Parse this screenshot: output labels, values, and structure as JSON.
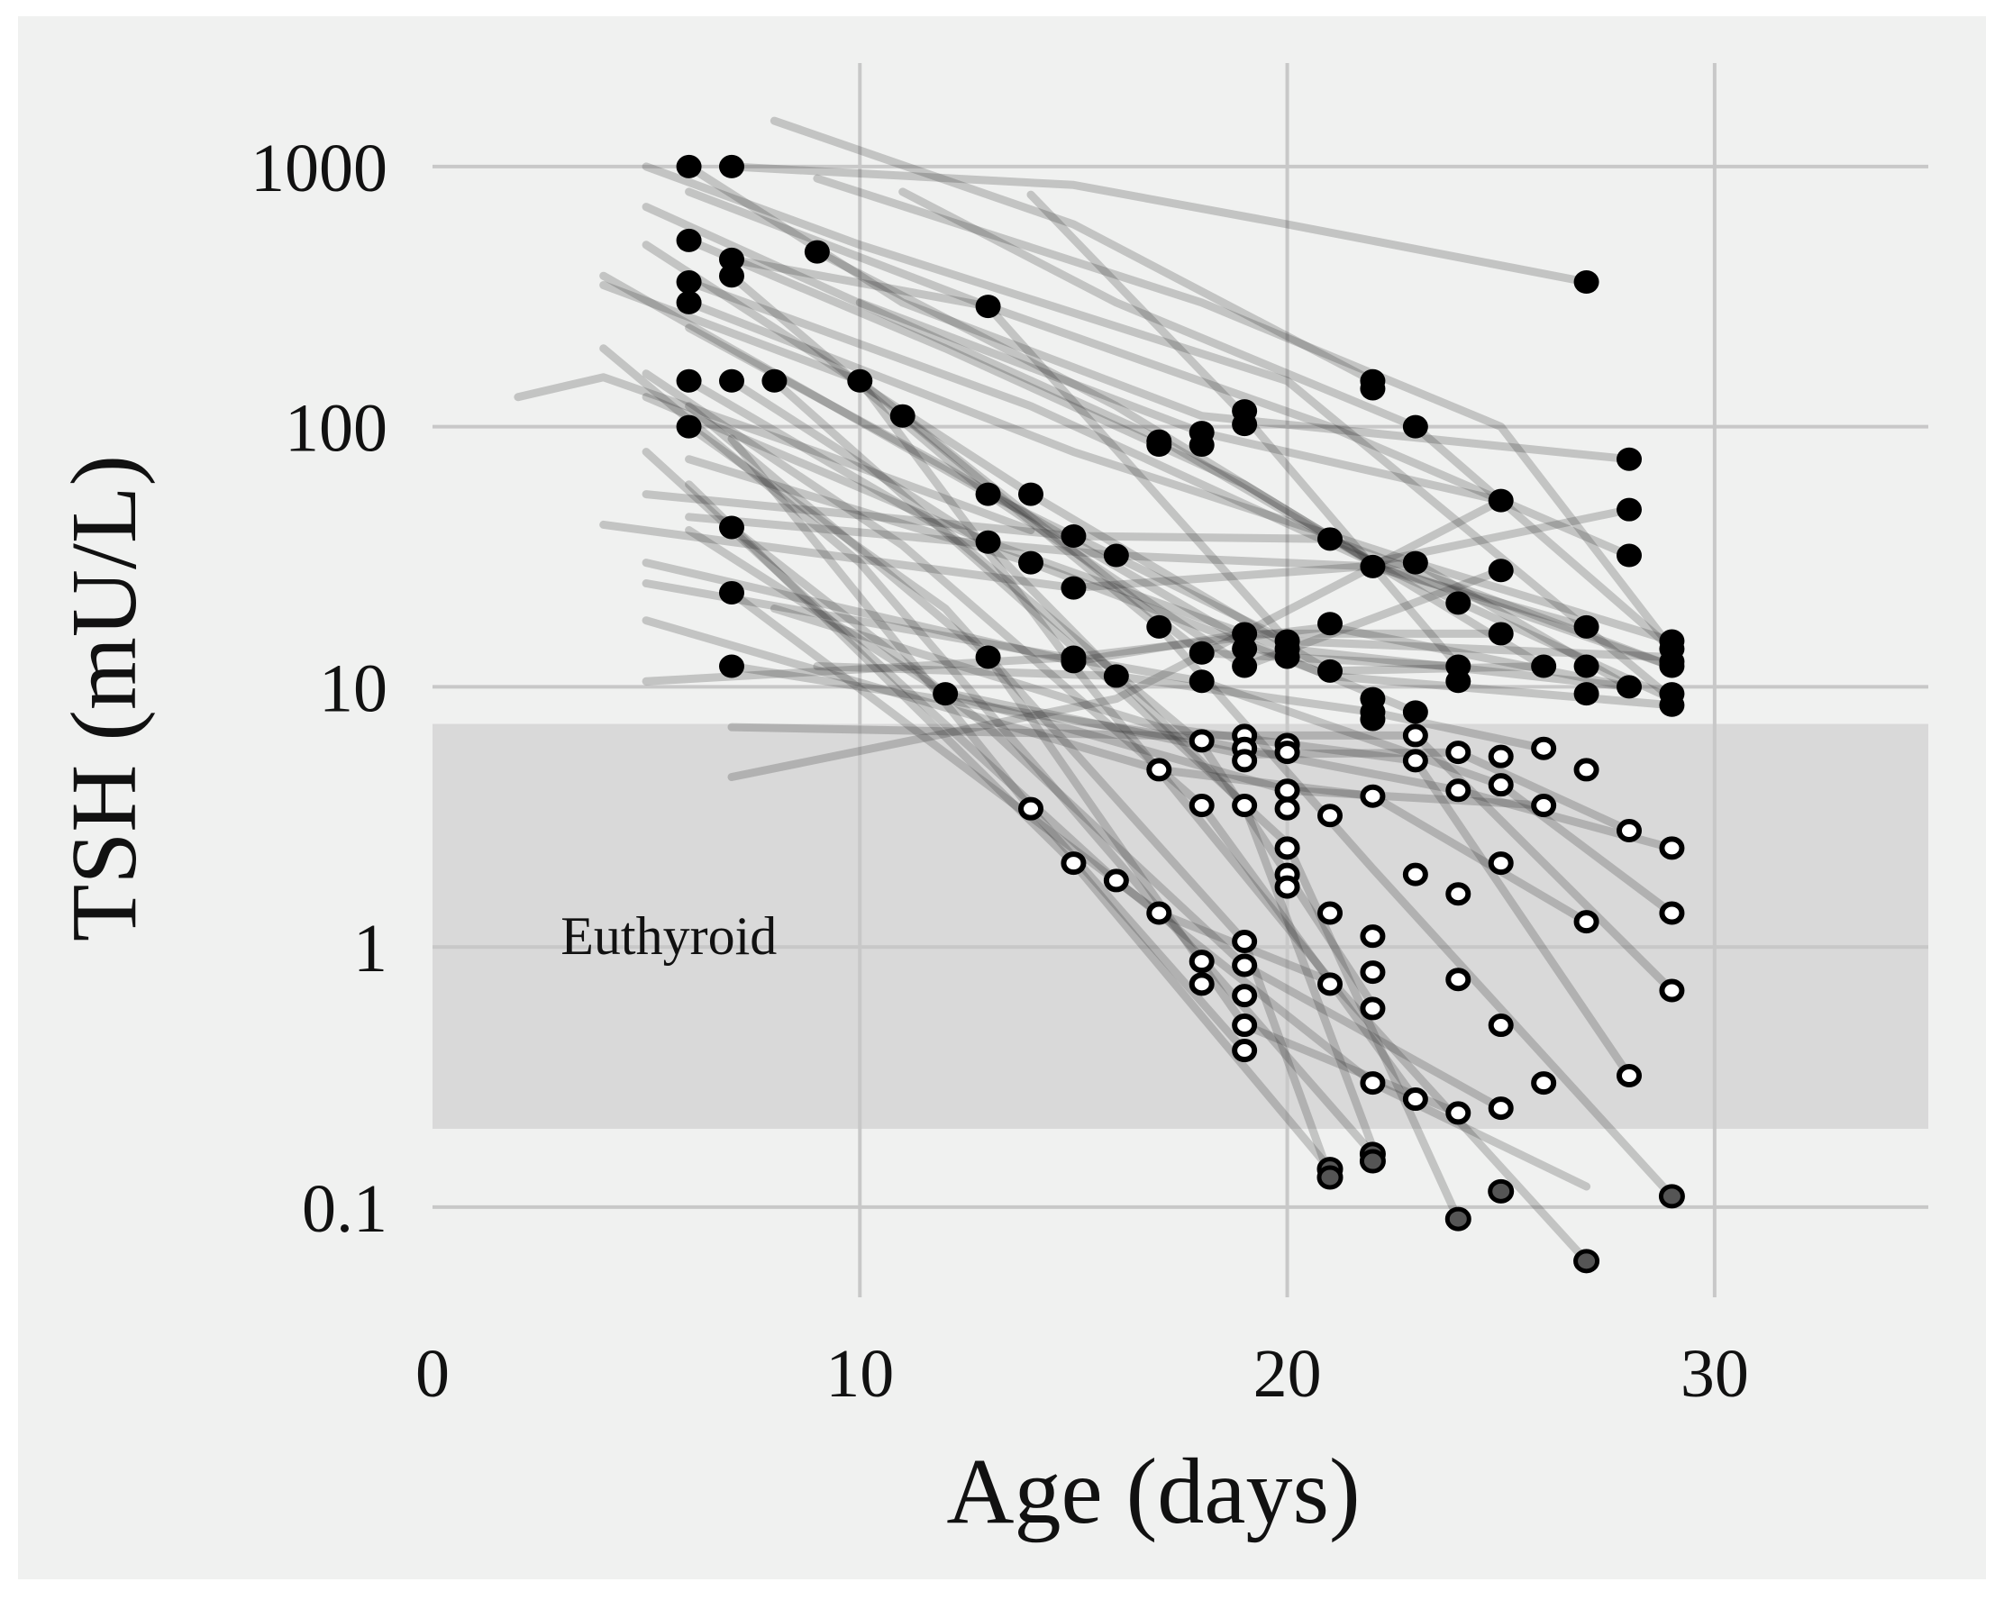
{
  "colors": {
    "panel_background": "#f0f1f0",
    "gridline": "#c8c8c8",
    "band_fill": "#d9d9d9",
    "trajectory_line": "#262626",
    "filled_point": "#000000",
    "open_point_fill": "#ffffff",
    "open_point_edge": "#000000",
    "gray_point": "#555555"
  },
  "chart_data": {
    "type": "scatter",
    "title": "",
    "xlabel": "Age (days)",
    "ylabel": "TSH (mU/L)",
    "y_scale": "log10",
    "xlim": [
      0,
      35
    ],
    "ylim": [
      0.045,
      2500
    ],
    "x_ticks": [
      0,
      10,
      20,
      30
    ],
    "x_tick_labels": [
      "0",
      "10",
      "20",
      "30"
    ],
    "y_ticks": [
      0.1,
      1,
      10,
      100,
      1000
    ],
    "y_tick_labels": [
      "0.1",
      "1",
      "10",
      "100",
      "1000"
    ],
    "grid": true,
    "reference_band": {
      "label": "Euthyroid",
      "y_min": 0.2,
      "y_max": 7.2,
      "label_x": 3,
      "label_y": 1.1
    },
    "trajectories": [
      [
        [
          2,
          130
        ],
        [
          4,
          155
        ],
        [
          9,
          80
        ],
        [
          14,
          40
        ]
      ],
      [
        [
          5,
          1000
        ],
        [
          10,
          500
        ],
        [
          20,
          150
        ],
        [
          29,
          9
        ]
      ],
      [
        [
          6,
          1000
        ],
        [
          11,
          300
        ],
        [
          18,
          110
        ],
        [
          28,
          75
        ]
      ],
      [
        [
          7,
          1000
        ],
        [
          15,
          850
        ],
        [
          20,
          600
        ],
        [
          27,
          360
        ]
      ],
      [
        [
          8,
          1500
        ],
        [
          15,
          600
        ],
        [
          22,
          150
        ]
      ],
      [
        [
          9,
          900
        ],
        [
          18,
          300
        ],
        [
          25,
          100
        ],
        [
          29,
          14
        ]
      ],
      [
        [
          6,
          520
        ],
        [
          12,
          200
        ],
        [
          19,
          60
        ],
        [
          26,
          12
        ]
      ],
      [
        [
          7,
          440
        ],
        [
          13,
          290
        ],
        [
          21,
          100
        ],
        [
          28,
          32
        ]
      ],
      [
        [
          6,
          360
        ],
        [
          14,
          120
        ],
        [
          22,
          30
        ],
        [
          29,
          9
        ]
      ],
      [
        [
          6,
          300
        ],
        [
          15,
          80
        ],
        [
          23,
          30
        ],
        [
          28,
          10
        ]
      ],
      [
        [
          7,
          380
        ],
        [
          13,
          55
        ],
        [
          20,
          15
        ],
        [
          29,
          13
        ]
      ],
      [
        [
          9,
          470
        ],
        [
          16,
          120
        ],
        [
          22,
          30
        ],
        [
          28,
          48
        ]
      ],
      [
        [
          11,
          800
        ],
        [
          16,
          300
        ],
        [
          23,
          100
        ],
        [
          29,
          14
        ]
      ],
      [
        [
          14,
          780
        ],
        [
          19,
          110
        ],
        [
          24,
          12
        ]
      ],
      [
        [
          6,
          150
        ],
        [
          12,
          40
        ],
        [
          18,
          6
        ],
        [
          22,
          0.6
        ]
      ],
      [
        [
          7,
          150
        ],
        [
          13,
          35
        ],
        [
          19,
          3.5
        ],
        [
          22,
          0.17
        ]
      ],
      [
        [
          8,
          150
        ],
        [
          14,
          20
        ],
        [
          20,
          2.5
        ],
        [
          24,
          0.09
        ]
      ],
      [
        [
          10,
          150
        ],
        [
          15,
          12
        ],
        [
          21,
          0.75
        ],
        [
          27,
          0.062
        ]
      ],
      [
        [
          11,
          110
        ],
        [
          17,
          17
        ],
        [
          22,
          2
        ],
        [
          29,
          0.11
        ]
      ],
      [
        [
          6,
          100
        ],
        [
          12,
          20
        ],
        [
          19,
          1.05
        ],
        [
          21,
          0.13
        ]
      ],
      [
        [
          4,
          200
        ],
        [
          10,
          30
        ],
        [
          18,
          0.9
        ],
        [
          22,
          0.16
        ]
      ],
      [
        [
          5,
          160
        ],
        [
          11,
          35
        ],
        [
          18,
          3.5
        ],
        [
          23,
          0.26
        ]
      ],
      [
        [
          6,
          120
        ],
        [
          13,
          13
        ],
        [
          19,
          0.5
        ],
        [
          24,
          0.23
        ]
      ],
      [
        [
          7,
          90
        ],
        [
          14,
          3.4
        ],
        [
          19,
          0.4
        ]
      ],
      [
        [
          7,
          41
        ],
        [
          13,
          7
        ],
        [
          19,
          0.85
        ],
        [
          25,
          0.24
        ]
      ],
      [
        [
          6,
          60
        ],
        [
          15,
          2.1
        ],
        [
          21,
          0.14
        ]
      ],
      [
        [
          5,
          80
        ],
        [
          16,
          1.8
        ],
        [
          22,
          0.3
        ],
        [
          27,
          0.12
        ]
      ],
      [
        [
          7,
          23
        ],
        [
          17,
          1.35
        ],
        [
          21,
          0.74
        ]
      ],
      [
        [
          7,
          12
        ],
        [
          18,
          6.2
        ],
        [
          24,
          4
        ],
        [
          29,
          2.4
        ]
      ],
      [
        [
          5,
          25
        ],
        [
          18,
          10.5
        ],
        [
          25,
          4.2
        ],
        [
          29,
          1.35
        ]
      ],
      [
        [
          5,
          18
        ],
        [
          17,
          4.8
        ],
        [
          22,
          3.8
        ],
        [
          27,
          1.25
        ]
      ],
      [
        [
          6,
          40
        ],
        [
          12,
          9.4
        ],
        [
          20,
          4
        ],
        [
          26,
          3.5
        ]
      ],
      [
        [
          4,
          380
        ],
        [
          13,
          55
        ],
        [
          19,
          12
        ],
        [
          25,
          28
        ]
      ],
      [
        [
          4,
          350
        ],
        [
          10,
          150
        ],
        [
          18,
          13.5
        ],
        [
          24,
          12
        ]
      ],
      [
        [
          5,
          130
        ],
        [
          13,
          36
        ],
        [
          20,
          14
        ],
        [
          28,
          10
        ]
      ],
      [
        [
          6,
          75
        ],
        [
          14,
          30
        ],
        [
          21,
          11
        ],
        [
          29,
          8.5
        ]
      ],
      [
        [
          5,
          55
        ],
        [
          15,
          38
        ],
        [
          21,
          37
        ],
        [
          29,
          12
        ]
      ],
      [
        [
          6,
          45
        ],
        [
          16,
          32
        ],
        [
          22,
          29
        ],
        [
          27,
          17
        ]
      ],
      [
        [
          4,
          42
        ],
        [
          15,
          24
        ],
        [
          23,
          30
        ],
        [
          29,
          15
        ]
      ],
      [
        [
          5,
          30
        ],
        [
          15,
          12.5
        ],
        [
          19,
          16
        ],
        [
          25,
          16
        ]
      ],
      [
        [
          5,
          10.5
        ],
        [
          15,
          13
        ],
        [
          21,
          17
        ],
        [
          28,
          10
        ]
      ],
      [
        [
          7,
          7
        ],
        [
          17,
          6.5
        ],
        [
          23,
          6.5
        ],
        [
          29,
          0.68
        ]
      ],
      [
        [
          7,
          4.5
        ],
        [
          16,
          9
        ],
        [
          25,
          52
        ]
      ],
      [
        [
          9,
          12
        ],
        [
          16,
          11
        ],
        [
          22,
          8
        ],
        [
          26,
          5.8
        ]
      ],
      [
        [
          12,
          9.5
        ],
        [
          19,
          5.5
        ],
        [
          24,
          5.6
        ],
        [
          28,
          2.8
        ]
      ],
      [
        [
          8,
          20
        ],
        [
          17,
          7
        ],
        [
          23,
          5.2
        ],
        [
          28,
          0.32
        ]
      ],
      [
        [
          5,
          700
        ],
        [
          17,
          90
        ],
        [
          22,
          30
        ],
        [
          29,
          12
        ]
      ],
      [
        [
          6,
          800
        ],
        [
          13,
          290
        ],
        [
          20,
          15
        ]
      ],
      [
        [
          10,
          300
        ],
        [
          18,
          95
        ],
        [
          25,
          52
        ]
      ],
      [
        [
          5,
          500
        ],
        [
          14,
          55
        ],
        [
          21,
          11.5
        ],
        [
          26,
          12
        ]
      ],
      [
        [
          6,
          240
        ],
        [
          12,
          70
        ],
        [
          19,
          15
        ],
        [
          23,
          8
        ]
      ]
    ],
    "filled_points": [
      [
        6,
        1000
      ],
      [
        7,
        1000
      ],
      [
        6,
        520
      ],
      [
        9,
        470
      ],
      [
        7,
        440
      ],
      [
        7,
        380
      ],
      [
        6,
        360
      ],
      [
        6,
        300
      ],
      [
        27,
        360
      ],
      [
        13,
        290
      ],
      [
        6,
        150
      ],
      [
        7,
        150
      ],
      [
        8,
        150
      ],
      [
        10,
        150
      ],
      [
        22,
        150
      ],
      [
        22,
        140
      ],
      [
        11,
        110
      ],
      [
        6,
        100
      ],
      [
        19,
        115
      ],
      [
        19,
        102
      ],
      [
        18,
        95
      ],
      [
        18,
        85
      ],
      [
        17,
        88
      ],
      [
        17,
        85
      ],
      [
        23,
        100
      ],
      [
        28,
        75
      ],
      [
        13,
        55
      ],
      [
        14,
        55
      ],
      [
        25,
        52
      ],
      [
        28,
        48
      ],
      [
        7,
        41
      ],
      [
        15,
        38
      ],
      [
        21,
        37
      ],
      [
        13,
        36
      ],
      [
        16,
        32
      ],
      [
        28,
        32
      ],
      [
        14,
        30
      ],
      [
        22,
        29
      ],
      [
        23,
        30
      ],
      [
        25,
        28
      ],
      [
        15,
        24
      ],
      [
        7,
        23
      ],
      [
        24,
        21
      ],
      [
        17,
        17
      ],
      [
        21,
        17.5
      ],
      [
        27,
        17
      ],
      [
        25,
        16
      ],
      [
        19,
        16
      ],
      [
        20,
        15
      ],
      [
        29,
        15
      ],
      [
        19,
        14
      ],
      [
        20,
        14
      ],
      [
        29,
        14
      ],
      [
        18,
        13.5
      ],
      [
        13,
        13
      ],
      [
        15,
        12.5
      ],
      [
        15,
        13
      ],
      [
        20,
        13
      ],
      [
        29,
        12.5
      ],
      [
        7,
        12
      ],
      [
        19,
        12
      ],
      [
        24,
        12
      ],
      [
        26,
        12
      ],
      [
        27,
        12
      ],
      [
        29,
        12
      ],
      [
        21,
        11.5
      ],
      [
        16,
        11
      ],
      [
        18,
        10.5
      ],
      [
        24,
        10.5
      ],
      [
        28,
        10
      ],
      [
        12,
        9.4
      ],
      [
        27,
        9.4
      ],
      [
        29,
        9.4
      ],
      [
        22,
        9
      ],
      [
        22,
        8
      ],
      [
        23,
        8
      ],
      [
        22,
        7.5
      ],
      [
        29,
        8.5
      ]
    ],
    "open_points": [
      [
        19,
        6.5
      ],
      [
        18,
        6.2
      ],
      [
        19,
        5.8
      ],
      [
        20,
        6
      ],
      [
        23,
        6.5
      ],
      [
        26,
        5.8
      ],
      [
        24,
        5.6
      ],
      [
        25,
        5.4
      ],
      [
        20,
        5.6
      ],
      [
        19,
        5.2
      ],
      [
        23,
        5.2
      ],
      [
        17,
        4.8
      ],
      [
        27,
        4.8
      ],
      [
        25,
        4.2
      ],
      [
        20,
        4
      ],
      [
        24,
        4
      ],
      [
        22,
        3.8
      ],
      [
        18,
        3.5
      ],
      [
        19,
        3.5
      ],
      [
        26,
        3.5
      ],
      [
        14,
        3.4
      ],
      [
        20,
        3.4
      ],
      [
        21,
        3.2
      ],
      [
        28,
        2.8
      ],
      [
        20,
        2.4
      ],
      [
        29,
        2.4
      ],
      [
        15,
        2.1
      ],
      [
        25,
        2.1
      ],
      [
        23,
        1.9
      ],
      [
        20,
        1.9
      ],
      [
        20,
        1.7
      ],
      [
        16,
        1.8
      ],
      [
        24,
        1.6
      ],
      [
        17,
        1.35
      ],
      [
        21,
        1.35
      ],
      [
        29,
        1.35
      ],
      [
        27,
        1.25
      ],
      [
        22,
        1.1
      ],
      [
        19,
        1.05
      ],
      [
        18,
        0.88
      ],
      [
        19,
        0.85
      ],
      [
        22,
        0.8
      ],
      [
        24,
        0.75
      ],
      [
        18,
        0.72
      ],
      [
        21,
        0.72
      ],
      [
        29,
        0.68
      ],
      [
        19,
        0.65
      ],
      [
        22,
        0.58
      ],
      [
        25,
        0.5
      ],
      [
        19,
        0.5
      ],
      [
        19,
        0.4
      ],
      [
        28,
        0.32
      ],
      [
        22,
        0.3
      ],
      [
        26,
        0.3
      ],
      [
        23,
        0.26
      ],
      [
        24,
        0.23
      ],
      [
        25,
        0.24
      ]
    ],
    "gray_points": [
      [
        21,
        0.14
      ],
      [
        21,
        0.13
      ],
      [
        22,
        0.16
      ],
      [
        22,
        0.15
      ],
      [
        25,
        0.115
      ],
      [
        29,
        0.11
      ],
      [
        24,
        0.09
      ],
      [
        27,
        0.062
      ]
    ]
  }
}
